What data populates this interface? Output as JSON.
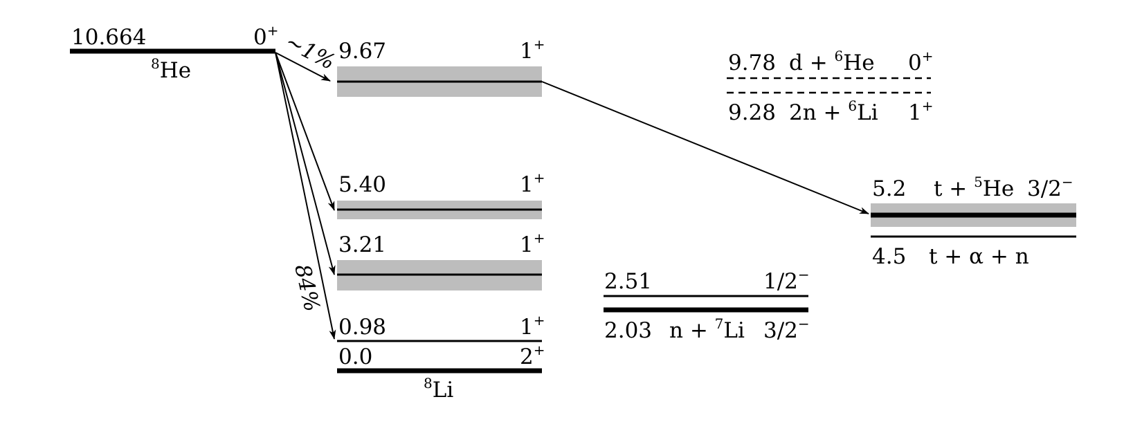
{
  "colors": {
    "line": "#000000",
    "width_band": "#bdbdbd"
  },
  "parent": {
    "energy": "10.664",
    "spin": "0",
    "parity": "+",
    "mass": "8",
    "element": "He"
  },
  "daughter": {
    "mass": "8",
    "element": "Li"
  },
  "branching": {
    "to_9_67": "~1%",
    "to_ground_side": "84%"
  },
  "levels": [
    {
      "energy": "9.67",
      "spin": "1",
      "parity": "+",
      "broad": true
    },
    {
      "energy": "5.40",
      "spin": "1",
      "parity": "+",
      "broad": true
    },
    {
      "energy": "3.21",
      "spin": "1",
      "parity": "+",
      "broad": true
    },
    {
      "energy": "0.98",
      "spin": "1",
      "parity": "+",
      "broad": false
    },
    {
      "energy": "0.0",
      "spin": "2",
      "parity": "+",
      "broad": false
    }
  ],
  "thresholds": {
    "d6he": {
      "energy": "9.78",
      "lhs": "d + ",
      "mass": "6",
      "element": "He",
      "jp": "0",
      "parity": "+"
    },
    "2n6li": {
      "energy": "9.28",
      "lhs": "2n + ",
      "mass": "6",
      "element": "Li",
      "jp": "1",
      "parity": "+"
    },
    "n7li_excited": {
      "energy": "2.51",
      "jp": "1/2",
      "parity": "−"
    },
    "n7li": {
      "energy": "2.03",
      "lhs": "n + ",
      "mass": "7",
      "element": "Li",
      "jp": "3/2",
      "parity": "−"
    },
    "t5he": {
      "energy": "5.2",
      "lhs": "t + ",
      "mass": "5",
      "element": "He",
      "jp": "3/2",
      "parity": "−"
    },
    "tan": {
      "energy": "4.5",
      "channel": "t + α + n"
    }
  }
}
